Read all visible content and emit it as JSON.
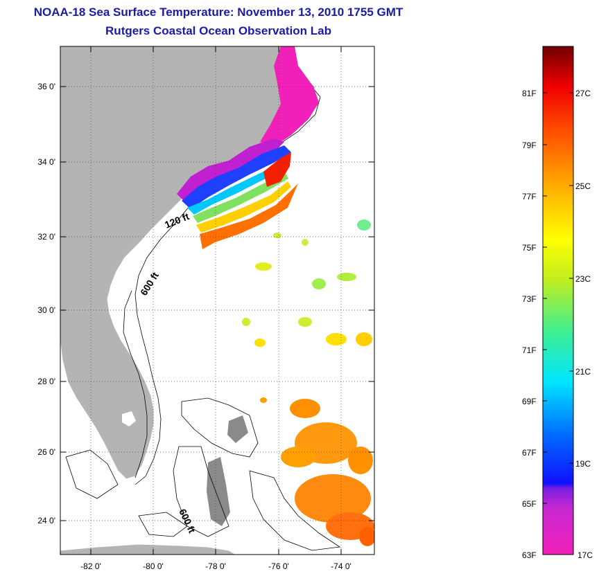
{
  "header": {
    "title": "NOAA-18 Sea Surface Temperature:  November 13, 2010 1755 GMT",
    "subtitle": "Rutgers Coastal Ocean Observation Lab"
  },
  "map": {
    "lon_ticks": [
      "-82 0'",
      "-80 0'",
      "-78 0'",
      "-76 0'",
      "-74 0'"
    ],
    "lat_ticks": [
      "36 0'",
      "34 0'",
      "32 0'",
      "30 0'",
      "28 0'",
      "26 0'",
      "24 0'"
    ],
    "contour_labels": [
      "120 ft",
      "600 ft",
      "600 ft"
    ],
    "land_color": "#b4b4b4",
    "coast_color": "#ffffff"
  },
  "colorbar": {
    "fahrenheit": [
      "81F",
      "79F",
      "77F",
      "75F",
      "73F",
      "71F",
      "69F",
      "67F",
      "65F",
      "63F"
    ],
    "celsius": [
      "27C",
      "25C",
      "23C",
      "21C",
      "19C",
      "17C"
    ],
    "colors": [
      "#f020b8",
      "#9a28d8",
      "#1010ff",
      "#00aaff",
      "#00f0ff",
      "#50ee90",
      "#a6ee30",
      "#ffff00",
      "#ffb000",
      "#ff5000",
      "#f00000",
      "#780000"
    ]
  }
}
